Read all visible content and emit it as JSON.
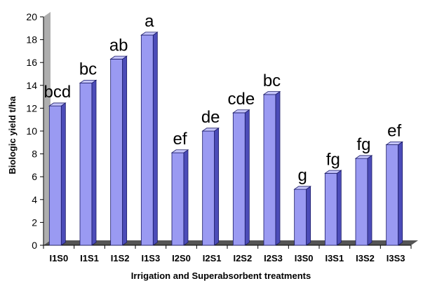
{
  "chart_data": {
    "type": "bar",
    "title": "",
    "xlabel": "Irrigation and Superabsorbent treatments",
    "ylabel": "Biologic yield  t/ha",
    "ylim": [
      0,
      20
    ],
    "yticks": [
      0,
      2,
      4,
      6,
      8,
      10,
      12,
      14,
      16,
      18,
      20
    ],
    "grid": false,
    "legend": "none",
    "bar_color": "#9a9af2",
    "bar_side_color": "#4c4cb8",
    "bar_top_color": "#c4c4fa",
    "wall_color": "#aeaeae",
    "floor_color": "#555555",
    "categories": [
      "I1S0",
      "I1S1",
      "I1S2",
      "I1S3",
      "I2S0",
      "I2S1",
      "I2S2",
      "I2S3",
      "I3S0",
      "I3S1",
      "I3S2",
      "I3S3"
    ],
    "values": [
      12.2,
      14.2,
      16.3,
      18.4,
      8.1,
      10.0,
      11.6,
      13.2,
      4.9,
      6.3,
      7.6,
      8.8
    ],
    "data_labels": [
      "bcd",
      "bc",
      "ab",
      "a",
      "ef",
      "de",
      "cde",
      "bc",
      "g",
      "fg",
      "fg",
      "ef"
    ]
  }
}
